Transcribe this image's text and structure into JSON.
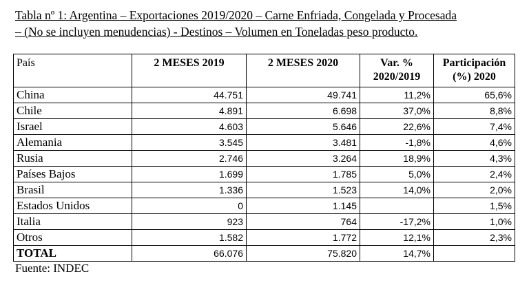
{
  "caption": {
    "line1": "Tabla nº 1: Argentina – Exportaciones 2019/2020 – Carne Enfriada, Congelada y Procesada",
    "line2": "– (No se incluyen menudencias) - Destinos – Volumen en Toneladas peso producto."
  },
  "table": {
    "headers": {
      "country": "País",
      "y2019": "2 MESES 2019",
      "y2020": "2 MESES 2020",
      "var_line1": "Var. %",
      "var_line2": "2020/2019",
      "part_line1": "Participación",
      "part_line2": "(%) 2020"
    },
    "rows": [
      {
        "country": "China",
        "y2019": "44.751",
        "y2020": "49.741",
        "var": "11,2%",
        "part": "65,6%"
      },
      {
        "country": "Chile",
        "y2019": "4.891",
        "y2020": "6.698",
        "var": "37,0%",
        "part": "8,8%"
      },
      {
        "country": "Israel",
        "y2019": "4.603",
        "y2020": "5.646",
        "var": "22,6%",
        "part": "7,4%"
      },
      {
        "country": "Alemania",
        "y2019": "3.545",
        "y2020": "3.481",
        "var": "-1,8%",
        "part": "4,6%"
      },
      {
        "country": "Rusia",
        "y2019": "2.746",
        "y2020": "3.264",
        "var": "18,9%",
        "part": "4,3%"
      },
      {
        "country": "Países Bajos",
        "y2019": "1.699",
        "y2020": "1.785",
        "var": "5,0%",
        "part": "2,4%"
      },
      {
        "country": "Brasil",
        "y2019": "1.336",
        "y2020": "1.523",
        "var": "14,0%",
        "part": "2,0%"
      },
      {
        "country": "Estados Unidos",
        "y2019": "0",
        "y2020": "1.145",
        "var": "",
        "part": "1,5%"
      },
      {
        "country": "Italia",
        "y2019": "923",
        "y2020": "764",
        "var": "-17,2%",
        "part": "1,0%"
      },
      {
        "country": "Otros",
        "y2019": "1.582",
        "y2020": "1.772",
        "var": "12,1%",
        "part": "2,3%"
      }
    ],
    "total": {
      "country": "TOTAL",
      "y2019": "66.076",
      "y2020": "75.820",
      "var": "14,7%",
      "part": ""
    }
  },
  "source": "Fuente: INDEC"
}
